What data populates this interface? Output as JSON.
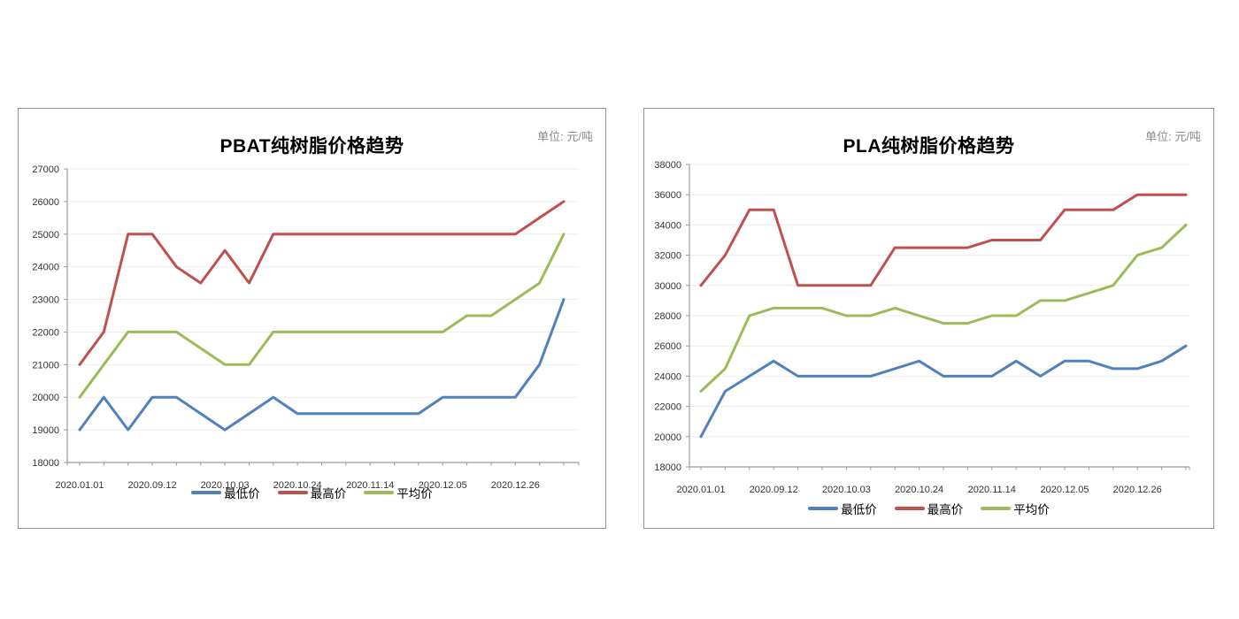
{
  "window": {
    "background": "#FFFFFF"
  },
  "styles": {
    "min_color": "#4F81BD",
    "max_color": "#C0504D",
    "avg_color": "#9BBB59",
    "grid_color": "#EDEDED",
    "axis_color": "#9B9B9B",
    "card_border_color": "#8F8F8F",
    "unit_text_color": "#8A8A8A",
    "axis_label_color": "#333333",
    "title_color": "#000000"
  },
  "chart_data": [
    {
      "id": "pbat",
      "type": "line",
      "title": "PBAT纯树脂价格趋势",
      "unit_label": "单位: 元/吨",
      "x_labels": [
        "2020.01.01",
        "2020.09.12",
        "2020.10.03",
        "2020.10.24",
        "2020.11.14",
        "2020.12.05",
        "2020.12.26"
      ],
      "x_label_indices": [
        0,
        3,
        6,
        9,
        12,
        15,
        18
      ],
      "n_points": 21,
      "ylim": [
        18000,
        27000
      ],
      "y_step": 1000,
      "grid": "horizontal",
      "legend_position": "bottom",
      "series": [
        {
          "name": "最低价",
          "color": "#4F81BD",
          "values": [
            19000,
            20000,
            19000,
            20000,
            20000,
            19500,
            19000,
            19500,
            20000,
            19500,
            19500,
            19500,
            19500,
            19500,
            19500,
            20000,
            20000,
            20000,
            20000,
            21000,
            23000
          ]
        },
        {
          "name": "最高价",
          "color": "#C0504D",
          "values": [
            21000,
            22000,
            25000,
            25000,
            24000,
            23500,
            24500,
            23500,
            25000,
            25000,
            25000,
            25000,
            25000,
            25000,
            25000,
            25000,
            25000,
            25000,
            25000,
            25500,
            26000
          ]
        },
        {
          "name": "平均价",
          "color": "#9BBB59",
          "values": [
            20000,
            21000,
            22000,
            22000,
            22000,
            21500,
            21000,
            21000,
            22000,
            22000,
            22000,
            22000,
            22000,
            22000,
            22000,
            22000,
            22500,
            22500,
            23000,
            23500,
            25000
          ]
        }
      ]
    },
    {
      "id": "pla",
      "type": "line",
      "title": "PLA纯树脂价格趋势",
      "unit_label": "单位: 元/吨",
      "x_labels": [
        "2020.01.01",
        "2020.09.12",
        "2020.10.03",
        "2020.10.24",
        "2020.11.14",
        "2020.12.05",
        "2020.12.26"
      ],
      "x_label_indices": [
        0,
        3,
        6,
        9,
        12,
        15,
        18
      ],
      "n_points": 21,
      "ylim": [
        18000,
        38000
      ],
      "y_step": 2000,
      "grid": "horizontal",
      "legend_position": "bottom",
      "series": [
        {
          "name": "最低价",
          "color": "#4F81BD",
          "values": [
            20000,
            23000,
            24000,
            25000,
            24000,
            24000,
            24000,
            24000,
            24500,
            25000,
            24000,
            24000,
            24000,
            25000,
            24000,
            25000,
            25000,
            24500,
            24500,
            25000,
            26000
          ]
        },
        {
          "name": "最高价",
          "color": "#C0504D",
          "values": [
            30000,
            32000,
            35000,
            35000,
            30000,
            30000,
            30000,
            30000,
            32500,
            32500,
            32500,
            32500,
            33000,
            33000,
            33000,
            35000,
            35000,
            35000,
            36000,
            36000,
            36000
          ]
        },
        {
          "name": "平均价",
          "color": "#9BBB59",
          "values": [
            23000,
            24500,
            28000,
            28500,
            28500,
            28500,
            28000,
            28000,
            28500,
            28000,
            27500,
            27500,
            28000,
            28000,
            29000,
            29000,
            29500,
            30000,
            32000,
            32500,
            34000
          ]
        }
      ]
    }
  ]
}
